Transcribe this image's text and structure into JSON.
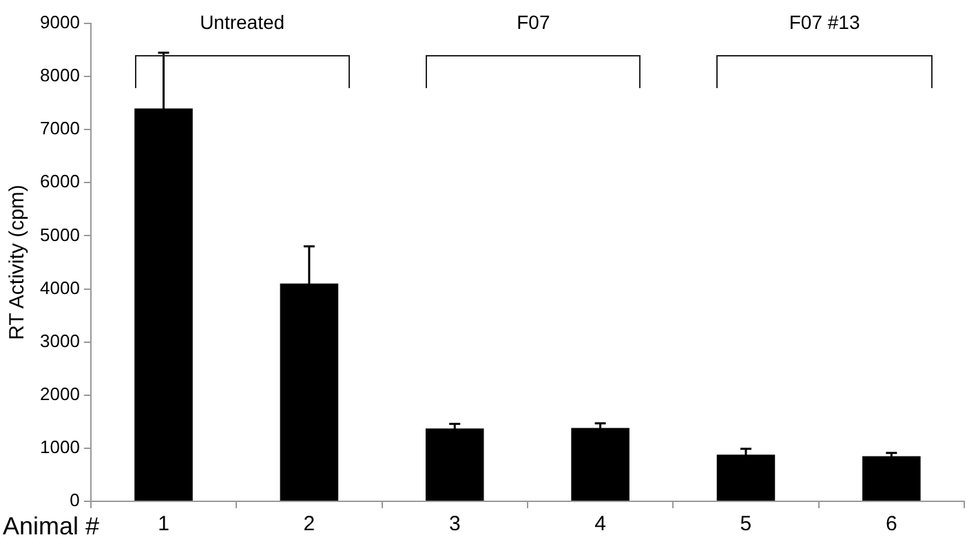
{
  "chart_data": {
    "type": "bar",
    "xlabel": "Animal #",
    "ylabel": "RT Activity (cpm)",
    "categories": [
      "1",
      "2",
      "3",
      "4",
      "5",
      "6"
    ],
    "values": [
      7400,
      4100,
      1370,
      1380,
      880,
      850
    ],
    "errors": [
      1050,
      700,
      90,
      90,
      110,
      60
    ],
    "color": "#000000",
    "ylim": [
      0,
      9000
    ],
    "yticks": [
      0,
      1000,
      2000,
      3000,
      4000,
      5000,
      6000,
      7000,
      8000,
      9000
    ],
    "grid": false,
    "legend": false,
    "annotations": [
      "Untreated",
      "F07",
      "F07 #13"
    ]
  }
}
